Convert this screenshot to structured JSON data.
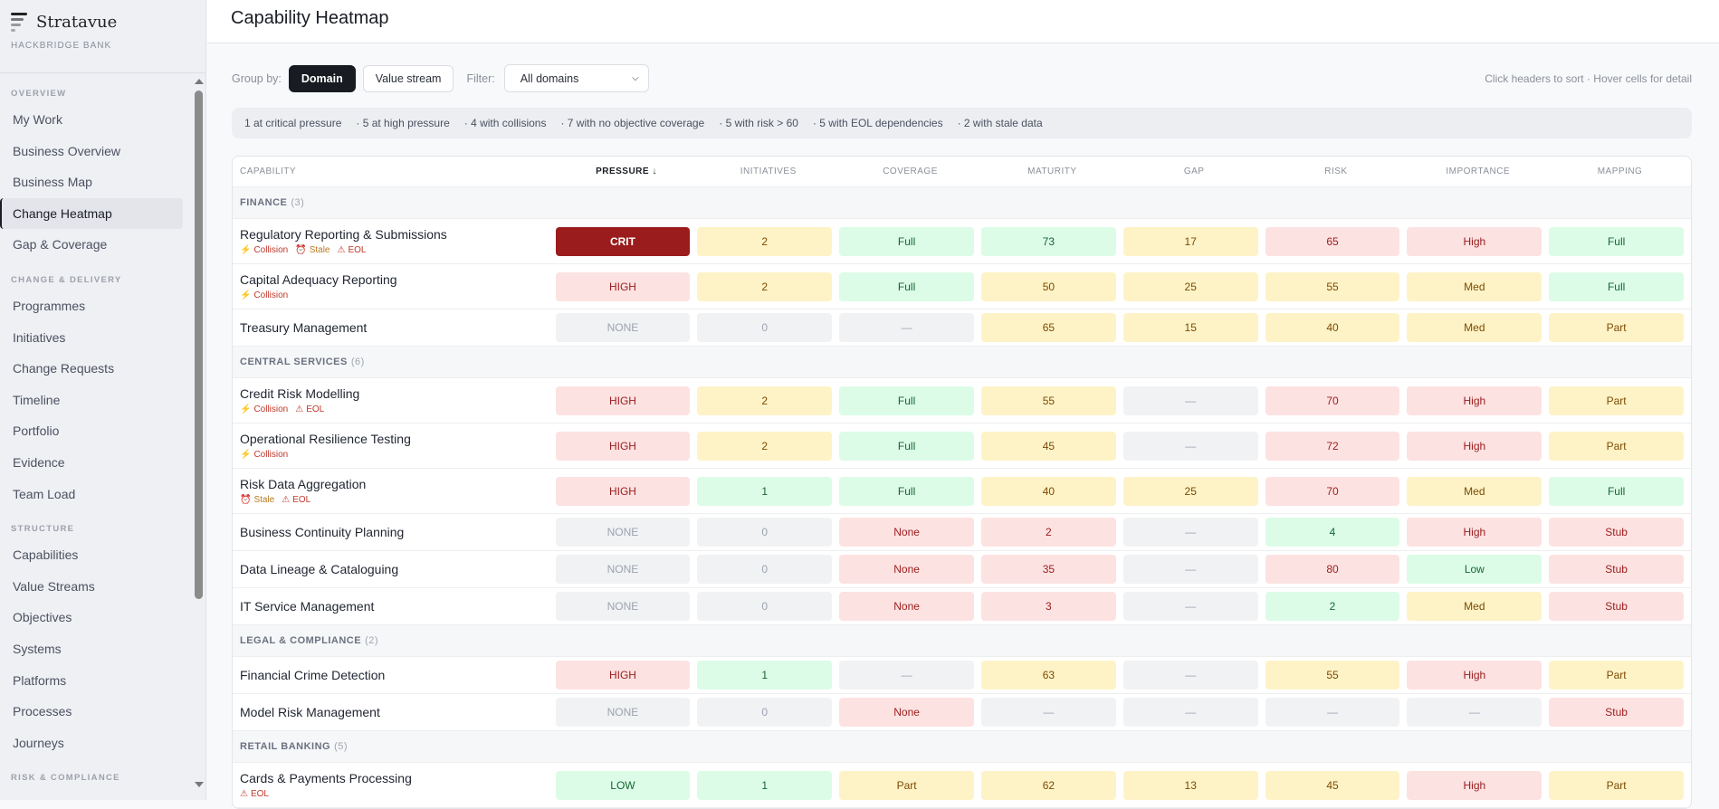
{
  "brand": {
    "name": "Stratavue",
    "org": "HACKBRIDGE BANK"
  },
  "sidebar": [
    {
      "section": "OVERVIEW",
      "items": [
        "My Work",
        "Business Overview",
        "Business Map",
        "Change Heatmap",
        "Gap & Coverage"
      ]
    },
    {
      "section": "CHANGE & DELIVERY",
      "items": [
        "Programmes",
        "Initiatives",
        "Change Requests",
        "Timeline",
        "Portfolio",
        "Evidence",
        "Team Load"
      ]
    },
    {
      "section": "STRUCTURE",
      "items": [
        "Capabilities",
        "Value Streams",
        "Objectives",
        "Systems",
        "Platforms",
        "Processes",
        "Journeys"
      ]
    },
    {
      "section": "RISK & COMPLIANCE",
      "items": []
    }
  ],
  "active_item": "Change Heatmap",
  "page": {
    "title": "Capability Heatmap"
  },
  "controls": {
    "group_label": "Group by:",
    "group_options": [
      "Domain",
      "Value stream"
    ],
    "group_selected": "Domain",
    "filter_label": "Filter:",
    "filter_value": "All domains",
    "hint": "Click headers to sort · Hover cells for detail"
  },
  "summary": [
    "1 at critical pressure",
    "· 5 at high pressure",
    "· 4 with collisions",
    "· 7 with no objective coverage",
    "· 5 with risk > 60",
    "· 5 with EOL dependencies",
    "· 2 with stale data"
  ],
  "columns": [
    "CAPABILITY",
    "PRESSURE ↓",
    "INITIATIVES",
    "COVERAGE",
    "MATURITY",
    "GAP",
    "RISK",
    "IMPORTANCE",
    "MAPPING"
  ],
  "sorted_column": "PRESSURE ↓",
  "tones": {
    "crit": {
      "bg": "#9b1c1c",
      "fg": "#ffffff"
    },
    "r": {
      "bg": "#fde2e2",
      "fg": "#9b1c1c"
    },
    "y": {
      "bg": "#fef3c7",
      "fg": "#7c4a03"
    },
    "g": {
      "bg": "#dcfce7",
      "fg": "#166534"
    },
    "n": {
      "bg": "#f1f2f4",
      "fg": "#9ca3af"
    }
  },
  "groups": [
    {
      "name": "FINANCE",
      "count": "(3)",
      "rows": [
        {
          "name": "Regulatory Reporting & Submissions",
          "tags": [
            "Collision",
            "Stale",
            "EOL"
          ],
          "cells": [
            [
              "CRIT",
              "crit"
            ],
            [
              "2",
              "y"
            ],
            [
              "Full",
              "g"
            ],
            [
              "73",
              "g"
            ],
            [
              "17",
              "y"
            ],
            [
              "65",
              "r"
            ],
            [
              "High",
              "r"
            ],
            [
              "Full",
              "g"
            ]
          ]
        },
        {
          "name": "Capital Adequacy Reporting",
          "tags": [
            "Collision"
          ],
          "cells": [
            [
              "HIGH",
              "r"
            ],
            [
              "2",
              "y"
            ],
            [
              "Full",
              "g"
            ],
            [
              "50",
              "y"
            ],
            [
              "25",
              "y"
            ],
            [
              "55",
              "y"
            ],
            [
              "Med",
              "y"
            ],
            [
              "Full",
              "g"
            ]
          ]
        },
        {
          "name": "Treasury Management",
          "tags": [],
          "cells": [
            [
              "NONE",
              "n"
            ],
            [
              "0",
              "n"
            ],
            [
              "—",
              "n"
            ],
            [
              "65",
              "y"
            ],
            [
              "15",
              "y"
            ],
            [
              "40",
              "y"
            ],
            [
              "Med",
              "y"
            ],
            [
              "Part",
              "y"
            ]
          ]
        }
      ]
    },
    {
      "name": "CENTRAL SERVICES",
      "count": "(6)",
      "rows": [
        {
          "name": "Credit Risk Modelling",
          "tags": [
            "Collision",
            "EOL"
          ],
          "cells": [
            [
              "HIGH",
              "r"
            ],
            [
              "2",
              "y"
            ],
            [
              "Full",
              "g"
            ],
            [
              "55",
              "y"
            ],
            [
              "—",
              "n"
            ],
            [
              "70",
              "r"
            ],
            [
              "High",
              "r"
            ],
            [
              "Part",
              "y"
            ]
          ]
        },
        {
          "name": "Operational Resilience Testing",
          "tags": [
            "Collision"
          ],
          "cells": [
            [
              "HIGH",
              "r"
            ],
            [
              "2",
              "y"
            ],
            [
              "Full",
              "g"
            ],
            [
              "45",
              "y"
            ],
            [
              "—",
              "n"
            ],
            [
              "72",
              "r"
            ],
            [
              "High",
              "r"
            ],
            [
              "Part",
              "y"
            ]
          ]
        },
        {
          "name": "Risk Data Aggregation",
          "tags": [
            "Stale",
            "EOL"
          ],
          "cells": [
            [
              "HIGH",
              "r"
            ],
            [
              "1",
              "g"
            ],
            [
              "Full",
              "g"
            ],
            [
              "40",
              "y"
            ],
            [
              "25",
              "y"
            ],
            [
              "70",
              "r"
            ],
            [
              "Med",
              "y"
            ],
            [
              "Full",
              "g"
            ]
          ]
        },
        {
          "name": "Business Continuity Planning",
          "tags": [],
          "cells": [
            [
              "NONE",
              "n"
            ],
            [
              "0",
              "n"
            ],
            [
              "None",
              "r"
            ],
            [
              "2",
              "r"
            ],
            [
              "—",
              "n"
            ],
            [
              "4",
              "g"
            ],
            [
              "High",
              "r"
            ],
            [
              "Stub",
              "r"
            ]
          ]
        },
        {
          "name": "Data Lineage & Cataloguing",
          "tags": [],
          "cells": [
            [
              "NONE",
              "n"
            ],
            [
              "0",
              "n"
            ],
            [
              "None",
              "r"
            ],
            [
              "35",
              "r"
            ],
            [
              "—",
              "n"
            ],
            [
              "80",
              "r"
            ],
            [
              "Low",
              "g"
            ],
            [
              "Stub",
              "r"
            ]
          ]
        },
        {
          "name": "IT Service Management",
          "tags": [],
          "cells": [
            [
              "NONE",
              "n"
            ],
            [
              "0",
              "n"
            ],
            [
              "None",
              "r"
            ],
            [
              "3",
              "r"
            ],
            [
              "—",
              "n"
            ],
            [
              "2",
              "g"
            ],
            [
              "Med",
              "y"
            ],
            [
              "Stub",
              "r"
            ]
          ]
        }
      ]
    },
    {
      "name": "LEGAL & COMPLIANCE",
      "count": "(2)",
      "rows": [
        {
          "name": "Financial Crime Detection",
          "tags": [],
          "cells": [
            [
              "HIGH",
              "r"
            ],
            [
              "1",
              "g"
            ],
            [
              "—",
              "n"
            ],
            [
              "63",
              "y"
            ],
            [
              "—",
              "n"
            ],
            [
              "55",
              "y"
            ],
            [
              "High",
              "r"
            ],
            [
              "Part",
              "y"
            ]
          ]
        },
        {
          "name": "Model Risk Management",
          "tags": [],
          "cells": [
            [
              "NONE",
              "n"
            ],
            [
              "0",
              "n"
            ],
            [
              "None",
              "r"
            ],
            [
              "—",
              "n"
            ],
            [
              "—",
              "n"
            ],
            [
              "—",
              "n"
            ],
            [
              "—",
              "n"
            ],
            [
              "Stub",
              "r"
            ]
          ]
        }
      ]
    },
    {
      "name": "RETAIL BANKING",
      "count": "(5)",
      "rows": [
        {
          "name": "Cards & Payments Processing",
          "tags": [
            "EOL"
          ],
          "cells": [
            [
              "LOW",
              "g"
            ],
            [
              "1",
              "g"
            ],
            [
              "Part",
              "y"
            ],
            [
              "62",
              "y"
            ],
            [
              "13",
              "y"
            ],
            [
              "45",
              "y"
            ],
            [
              "High",
              "r"
            ],
            [
              "Part",
              "y"
            ]
          ]
        }
      ]
    }
  ],
  "tag_icons": {
    "Collision": "⚡",
    "Stale": "⏰",
    "EOL": "⚠"
  }
}
